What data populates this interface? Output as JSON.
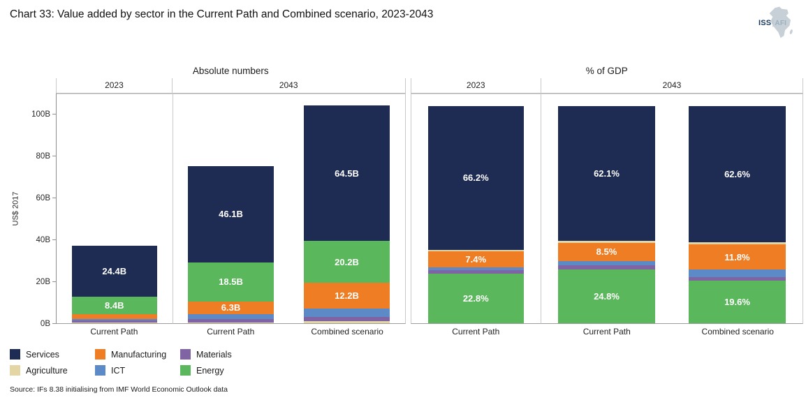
{
  "header": {
    "title": "Chart 33: Value added by sector in the Current Path and Combined scenario, 2023-2043",
    "logo": {
      "iss": "ISS",
      "afi": "AFI"
    }
  },
  "colors": {
    "services": "#1e2b52",
    "manufacturing": "#ef7d23",
    "materials": "#8063a2",
    "agriculture": "#e4d5a4",
    "ict": "#5c8ac6",
    "energy": "#5bb75c",
    "bar_label": "#ffffff",
    "border": "#c9c9c9",
    "axis": "#8f8f8f"
  },
  "chart_data": [
    {
      "type": "bar",
      "stacked": true,
      "title": "Absolute numbers",
      "ylabel": "US$ 2017",
      "ylim": [
        0,
        110
      ],
      "grid": false,
      "yticks": [
        {
          "value": 0,
          "label": "0B"
        },
        {
          "value": 20,
          "label": "20B"
        },
        {
          "value": 40,
          "label": "40B"
        },
        {
          "value": 60,
          "label": "60B"
        },
        {
          "value": 80,
          "label": "80B"
        },
        {
          "value": 100,
          "label": "100B"
        }
      ],
      "facets": [
        {
          "label": "2023",
          "bars": [
            {
              "category": "Current Path",
              "segments": [
                {
                  "sector": "Agriculture",
                  "value": 0.4
                },
                {
                  "sector": "Materials",
                  "value": 0.8
                },
                {
                  "sector": "ICT",
                  "value": 0.9
                },
                {
                  "sector": "Manufacturing",
                  "value": 2.2
                },
                {
                  "sector": "Energy",
                  "value": 8.4,
                  "label": "8.4B"
                },
                {
                  "sector": "Services",
                  "value": 24.4,
                  "label": "24.4B"
                }
              ]
            }
          ]
        },
        {
          "label": "2043",
          "bars": [
            {
              "category": "Current Path",
              "segments": [
                {
                  "sector": "Agriculture",
                  "value": 0.5
                },
                {
                  "sector": "Materials",
                  "value": 1.4
                },
                {
                  "sector": "ICT",
                  "value": 2.3
                },
                {
                  "sector": "Manufacturing",
                  "value": 6.3,
                  "label": "6.3B"
                },
                {
                  "sector": "Energy",
                  "value": 18.5,
                  "label": "18.5B"
                },
                {
                  "sector": "Services",
                  "value": 46.1,
                  "label": "46.1B"
                }
              ]
            },
            {
              "category": "Combined scenario",
              "segments": [
                {
                  "sector": "Agriculture",
                  "value": 1.0
                },
                {
                  "sector": "Materials",
                  "value": 2.0
                },
                {
                  "sector": "ICT",
                  "value": 4.0
                },
                {
                  "sector": "Manufacturing",
                  "value": 12.2,
                  "label": "12.2B"
                },
                {
                  "sector": "Energy",
                  "value": 20.2,
                  "label": "20.2B"
                },
                {
                  "sector": "Services",
                  "value": 64.5,
                  "label": "64.5B"
                }
              ]
            }
          ]
        }
      ]
    },
    {
      "type": "bar",
      "stacked": true,
      "title": "% of GDP",
      "ylabel": "",
      "ylim": [
        0,
        106
      ],
      "grid": false,
      "yticks": [],
      "facets": [
        {
          "label": "2023",
          "bars": [
            {
              "category": "Current Path",
              "segments": [
                {
                  "sector": "Energy",
                  "value": 22.8,
                  "label": "22.8%"
                },
                {
                  "sector": "Materials",
                  "value": 1.6
                },
                {
                  "sector": "ICT",
                  "value": 1.2
                },
                {
                  "sector": "Manufacturing",
                  "value": 7.4,
                  "label": "7.4%"
                },
                {
                  "sector": "Agriculture",
                  "value": 0.8
                },
                {
                  "sector": "Services",
                  "value": 66.2,
                  "label": "66.2%"
                }
              ]
            }
          ]
        },
        {
          "label": "2043",
          "bars": [
            {
              "category": "Current Path",
              "segments": [
                {
                  "sector": "Energy",
                  "value": 24.8,
                  "label": "24.8%"
                },
                {
                  "sector": "Materials",
                  "value": 1.9
                },
                {
                  "sector": "ICT",
                  "value": 1.9
                },
                {
                  "sector": "Manufacturing",
                  "value": 8.5,
                  "label": "8.5%"
                },
                {
                  "sector": "Agriculture",
                  "value": 0.8
                },
                {
                  "sector": "Services",
                  "value": 62.1,
                  "label": "62.1%"
                }
              ]
            },
            {
              "category": "Combined scenario",
              "segments": [
                {
                  "sector": "Energy",
                  "value": 19.6,
                  "label": "19.6%"
                },
                {
                  "sector": "Materials",
                  "value": 1.7
                },
                {
                  "sector": "ICT",
                  "value": 3.3
                },
                {
                  "sector": "Manufacturing",
                  "value": 11.8,
                  "label": "11.8%"
                },
                {
                  "sector": "Agriculture",
                  "value": 1.0
                },
                {
                  "sector": "Services",
                  "value": 62.6,
                  "label": "62.6%"
                }
              ]
            }
          ]
        }
      ]
    }
  ],
  "legend": {
    "position": "bottom-left",
    "items": [
      {
        "label": "Services",
        "color_key": "services"
      },
      {
        "label": "Manufacturing",
        "color_key": "manufacturing"
      },
      {
        "label": "Materials",
        "color_key": "materials"
      },
      {
        "label": "Agriculture",
        "color_key": "agriculture"
      },
      {
        "label": "ICT",
        "color_key": "ict"
      },
      {
        "label": "Energy",
        "color_key": "energy"
      }
    ]
  },
  "source": "Source: IFs 8.38 initialising from IMF World Economic Outlook data"
}
